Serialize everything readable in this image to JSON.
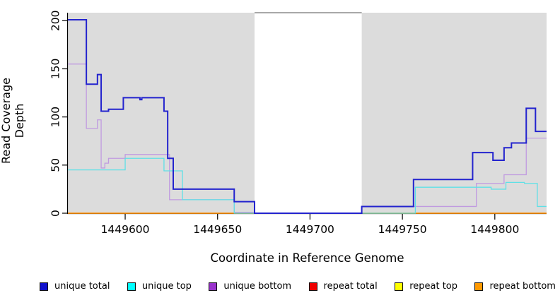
{
  "figure": {
    "y_axis_title": "Read Coverage Depth",
    "x_axis_title": "Coordinate in Reference Genome"
  },
  "chart_data": {
    "type": "line",
    "subtype": "step-after",
    "title": "",
    "xlabel": "Coordinate in Reference Genome",
    "ylabel": "Read Coverage Depth",
    "xlim": [
      1449569,
      1449828
    ],
    "ylim": [
      0,
      208
    ],
    "x_ticks": [
      1449600,
      1449650,
      1449700,
      1449750,
      1449800
    ],
    "y_ticks": [
      0,
      50,
      100,
      150,
      200
    ],
    "grid": false,
    "legend_position": "bottom",
    "shaded_color": "#DCDCDC",
    "shaded_regions": [
      {
        "start": 1449569,
        "end": 1449670
      },
      {
        "start": 1449728,
        "end": 1449828
      }
    ],
    "gap_top_line": {
      "start": 1449670,
      "end": 1449728,
      "color": "#8C8C8C"
    },
    "draw_order": [
      "repeat total",
      "repeat top",
      "repeat bottom",
      "unique bottom",
      "unique top",
      "unique total"
    ],
    "series": [
      {
        "name": "unique total",
        "line_color": "#2323CE",
        "swatch_color": "#1111CC",
        "line_width": 2,
        "points": [
          [
            1449569,
            201
          ],
          [
            1449579,
            134
          ],
          [
            1449585,
            144
          ],
          [
            1449587,
            106
          ],
          [
            1449591,
            108
          ],
          [
            1449599,
            120
          ],
          [
            1449608,
            118
          ],
          [
            1449609,
            120
          ],
          [
            1449621,
            106
          ],
          [
            1449623,
            57
          ],
          [
            1449626,
            25
          ],
          [
            1449659,
            12
          ],
          [
            1449670,
            0
          ],
          [
            1449728,
            7
          ],
          [
            1449756,
            35
          ],
          [
            1449788,
            63
          ],
          [
            1449799,
            55
          ],
          [
            1449805,
            68
          ],
          [
            1449809,
            73
          ],
          [
            1449817,
            109
          ],
          [
            1449822,
            85
          ]
        ]
      },
      {
        "name": "unique top",
        "line_color": "#5FE0E6",
        "swatch_color": "#00FFFF",
        "line_width": 1.3,
        "points": [
          [
            1449569,
            45
          ],
          [
            1449600,
            57
          ],
          [
            1449621,
            44
          ],
          [
            1449631,
            14
          ],
          [
            1449659,
            0
          ],
          [
            1449757,
            27
          ],
          [
            1449798,
            25
          ],
          [
            1449806,
            32
          ],
          [
            1449816,
            31
          ],
          [
            1449823,
            7
          ]
        ]
      },
      {
        "name": "unique bottom",
        "line_color": "#C09AE0",
        "swatch_color": "#9932CC",
        "line_width": 1.3,
        "points": [
          [
            1449569,
            155
          ],
          [
            1449579,
            88
          ],
          [
            1449585,
            97
          ],
          [
            1449587,
            47
          ],
          [
            1449589,
            52
          ],
          [
            1449591,
            57
          ],
          [
            1449600,
            61
          ],
          [
            1449624,
            14
          ],
          [
            1449659,
            1
          ],
          [
            1449670,
            0
          ],
          [
            1449728,
            7
          ],
          [
            1449790,
            31
          ],
          [
            1449805,
            40
          ],
          [
            1449817,
            78
          ]
        ]
      },
      {
        "name": "repeat total",
        "line_color": "#CC2222",
        "swatch_color": "#EE0000",
        "line_width": 1.3,
        "points": [
          [
            1449569,
            0
          ]
        ]
      },
      {
        "name": "repeat top",
        "line_color": "#EEEE00",
        "swatch_color": "#FFFF00",
        "line_width": 1.3,
        "points": [
          [
            1449569,
            0
          ]
        ]
      },
      {
        "name": "repeat bottom",
        "line_color": "#FF8C00",
        "swatch_color": "#FF9900",
        "line_width": 1.6,
        "points": [
          [
            1449569,
            0
          ]
        ]
      }
    ],
    "legend": [
      "unique total",
      "unique top",
      "unique bottom",
      "repeat total",
      "repeat top",
      "repeat bottom"
    ]
  }
}
